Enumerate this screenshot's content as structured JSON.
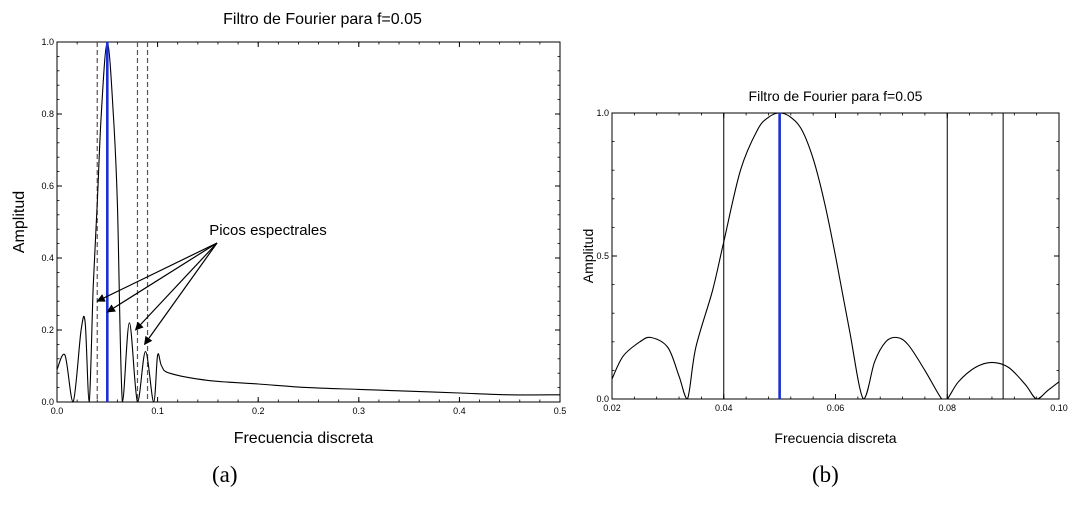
{
  "chart_data": [
    {
      "type": "line",
      "panel_label": "(a)",
      "title": "Filtro de Fourier para f=0.05",
      "xlabel": "Frecuencia discreta",
      "ylabel": "Amplitud",
      "xlim": [
        0.0,
        0.5
      ],
      "ylim": [
        0.0,
        1.0
      ],
      "xticks": [
        "0.0",
        "0.1",
        "0.2",
        "0.3",
        "0.4",
        "0.5"
      ],
      "yticks": [
        "0.0",
        "0.2",
        "0.4",
        "0.6",
        "0.8",
        "1.0"
      ],
      "grid": false,
      "series": [
        {
          "style": "curve",
          "color": "#000000",
          "x": [
            0.0,
            0.008,
            0.016,
            0.024,
            0.028,
            0.032,
            0.036,
            0.04,
            0.044,
            0.05,
            0.056,
            0.06,
            0.065,
            0.072,
            0.08,
            0.088,
            0.096,
            0.1,
            0.104,
            0.112,
            0.15,
            0.2,
            0.25,
            0.3,
            0.35,
            0.4,
            0.45,
            0.5
          ],
          "y": [
            0.09,
            0.13,
            0.0,
            0.2,
            0.22,
            0.0,
            0.32,
            0.55,
            0.8,
            1.0,
            0.8,
            0.55,
            0.0,
            0.22,
            0.0,
            0.14,
            0.0,
            0.13,
            0.1,
            0.08,
            0.06,
            0.05,
            0.04,
            0.035,
            0.03,
            0.025,
            0.02,
            0.02
          ]
        },
        {
          "style": "vertical",
          "color": "#1a2fd6",
          "x": 0.05
        },
        {
          "style": "vertical-dashed",
          "color": "#555555",
          "x": [
            0.04,
            0.08,
            0.09
          ]
        }
      ],
      "annotation": {
        "text": "Picos espectrales",
        "arrow_targets": [
          [
            0.04,
            0.28
          ],
          [
            0.05,
            0.25
          ],
          [
            0.078,
            0.2
          ],
          [
            0.087,
            0.16
          ]
        ]
      }
    },
    {
      "type": "line",
      "panel_label": "(b)",
      "title": "Filtro de Fourier para f=0.05",
      "xlabel": "Frecuencia discreta",
      "ylabel": "Amplitud",
      "xlim": [
        0.02,
        0.1
      ],
      "ylim": [
        0.0,
        1.0
      ],
      "xticks": [
        "0.02",
        "0.04",
        "0.06",
        "0.08",
        "0.10"
      ],
      "yticks": [
        "0.0",
        "0.5",
        "1.0"
      ],
      "grid": false,
      "series": [
        {
          "style": "curve",
          "color": "#000000",
          "x": [
            0.02,
            0.022,
            0.025,
            0.027,
            0.03,
            0.032,
            0.0335,
            0.035,
            0.038,
            0.04,
            0.043,
            0.046,
            0.048,
            0.05,
            0.052,
            0.054,
            0.056,
            0.058,
            0.06,
            0.0625,
            0.065,
            0.067,
            0.069,
            0.071,
            0.073,
            0.076,
            0.079,
            0.08,
            0.082,
            0.085,
            0.088,
            0.091,
            0.094,
            0.096,
            0.098,
            0.1
          ],
          "y": [
            0.07,
            0.15,
            0.2,
            0.215,
            0.18,
            0.08,
            0.0,
            0.18,
            0.38,
            0.55,
            0.8,
            0.94,
            0.985,
            1.0,
            0.985,
            0.94,
            0.84,
            0.69,
            0.5,
            0.24,
            0.0,
            0.13,
            0.2,
            0.215,
            0.19,
            0.1,
            0.0,
            0.0,
            0.06,
            0.11,
            0.128,
            0.11,
            0.05,
            0.0,
            0.03,
            0.06
          ]
        },
        {
          "style": "vertical",
          "color": "#1a2fd6",
          "x": 0.05
        },
        {
          "style": "vertical-thin",
          "color": "#000000",
          "x": [
            0.04,
            0.08,
            0.09
          ]
        }
      ]
    }
  ]
}
